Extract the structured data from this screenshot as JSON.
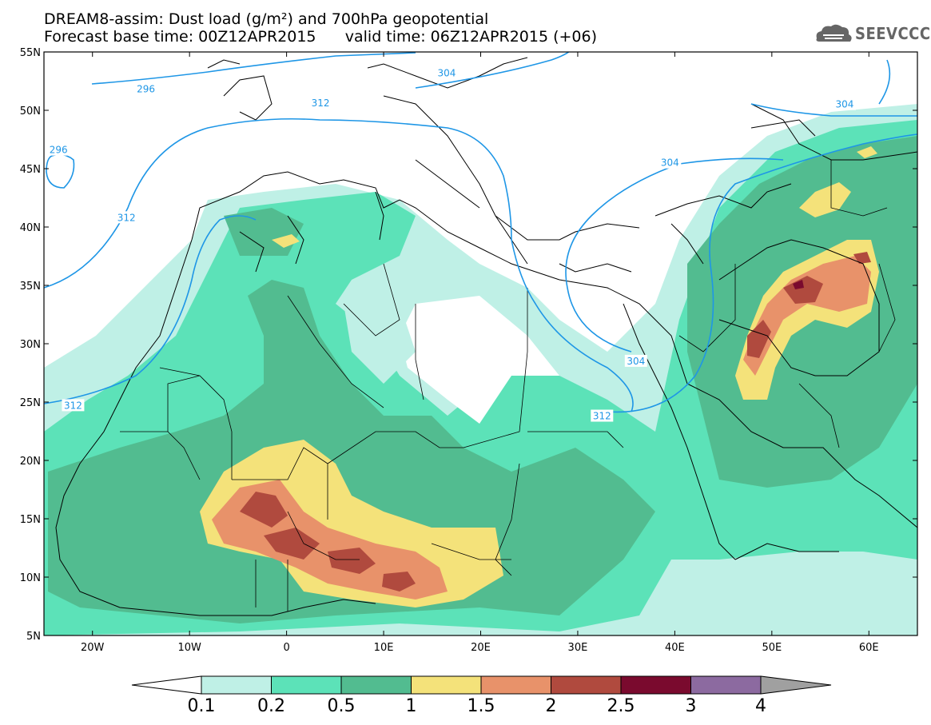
{
  "header": {
    "title_line1": "DREAM8-assim: Dust load (g/m²) and 700hPa geopotential",
    "title_line2": "Forecast base time: 00Z12APR2015      valid time: 06Z12APR2015 (+06)",
    "logo_text": "SEEVCCC",
    "logo_icon": "cloud-icon"
  },
  "map": {
    "projection": "lat-lon",
    "lon_range": [
      -25,
      65
    ],
    "lat_range": [
      5,
      55
    ],
    "lat_labels": [
      "55N",
      "50N",
      "45N",
      "40N",
      "35N",
      "30N",
      "25N",
      "20N",
      "15N",
      "10N",
      "5N"
    ],
    "lon_labels": [
      "20W",
      "10W",
      "0",
      "10E",
      "20E",
      "30E",
      "40E",
      "50E",
      "60E"
    ],
    "contour_labels": [
      {
        "text": "296",
        "lon": -14.5,
        "lat": 51.8
      },
      {
        "text": "296",
        "lon": -23.5,
        "lat": 46.6
      },
      {
        "text": "304",
        "lon": 16.5,
        "lat": 53.2
      },
      {
        "text": "312",
        "lon": 3.5,
        "lat": 50.6
      },
      {
        "text": "304",
        "lon": 57.5,
        "lat": 50.5
      },
      {
        "text": "304",
        "lon": 39.5,
        "lat": 45.5
      },
      {
        "text": "312",
        "lon": -16.5,
        "lat": 40.8
      },
      {
        "text": "304",
        "lon": 36,
        "lat": 28.5
      },
      {
        "text": "312",
        "lon": 32.5,
        "lat": 23.8
      },
      {
        "text": "312",
        "lon": -22,
        "lat": 24.7
      }
    ],
    "colors": {
      "land_outline": "#000000",
      "contour_line": "#1e96e6",
      "grid_tick": "#000000"
    }
  },
  "colorbar": {
    "ticks": [
      "0.1",
      "0.2",
      "0.5",
      "1",
      "1.5",
      "2",
      "2.5",
      "3",
      "4"
    ],
    "colors": [
      "#bff0e6",
      "#5ce2b8",
      "#52bc90",
      "#f4e27a",
      "#e8926a",
      "#b04a3e",
      "#7a0a2e",
      "#8c6aa0",
      "#a0a0a0"
    ],
    "unit": "g/m²"
  }
}
